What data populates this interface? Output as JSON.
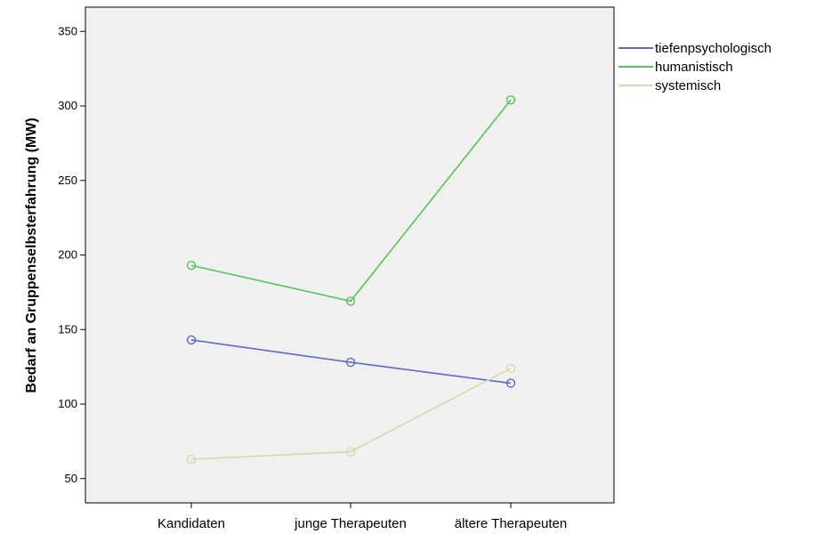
{
  "chart_data": {
    "type": "line",
    "categories": [
      "Kandidaten",
      "junge Therapeuten",
      "ältere Therapeuten"
    ],
    "series": [
      {
        "name": "tiefenpsychologisch",
        "values": [
          143,
          128,
          114
        ],
        "color": "#5b6fbf"
      },
      {
        "name": "humanistisch",
        "values": [
          193,
          169,
          304
        ],
        "color": "#54c456"
      },
      {
        "name": "systemisch",
        "values": [
          63,
          68,
          124
        ],
        "color": "#ddd6ab"
      }
    ],
    "ylabel": "Bedarf an Gruppenselbsterfahrung (MW)",
    "xlabel": "",
    "yticks": [
      50,
      100,
      150,
      200,
      250,
      300,
      350
    ],
    "ylim": [
      37,
      360
    ],
    "grid": false,
    "legend_position": "right",
    "marker": "open-circle",
    "plot_background": "#f0f0f0"
  }
}
